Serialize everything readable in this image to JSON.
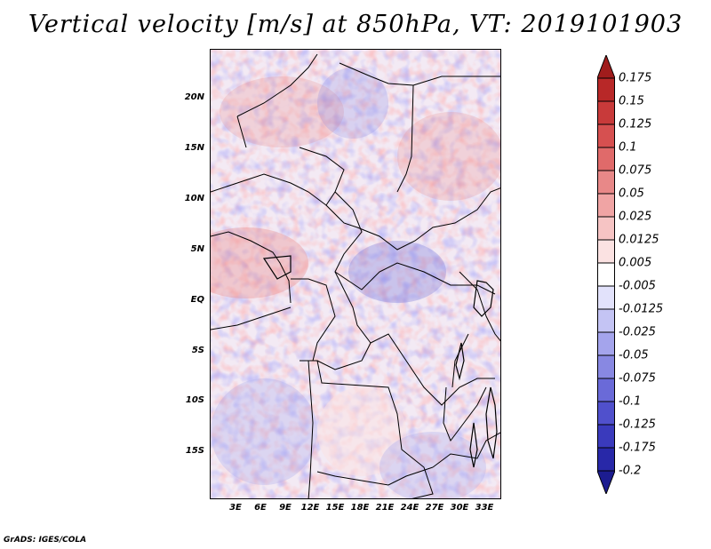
{
  "title": "Vertical velocity [m/s] at 850hPa, VT: 2019101903",
  "lat_labels": [
    "20N",
    "15N",
    "10N",
    "5N",
    "EQ",
    "5S",
    "10S",
    "15S"
  ],
  "lon_labels": [
    "3E",
    "6E",
    "9E",
    "12E",
    "15E",
    "18E",
    "21E",
    "24E",
    "27E",
    "30E",
    "33E"
  ],
  "colorbar": {
    "labels": [
      "0.175",
      "0.15",
      "0.125",
      "0.1",
      "0.075",
      "0.05",
      "0.025",
      "0.0125",
      "0.005",
      "-0.005",
      "-0.0125",
      "-0.025",
      "-0.05",
      "-0.075",
      "-0.1",
      "-0.125",
      "-0.175",
      "-0.2"
    ],
    "colors": [
      "#a01c1c",
      "#b82828",
      "#c83a3a",
      "#d65050",
      "#e06a6a",
      "#e88888",
      "#f0a4a4",
      "#f6c4c4",
      "#fbe2e2",
      "#ffffff",
      "#e2e2fb",
      "#c4c4f4",
      "#a4a4ec",
      "#8888e2",
      "#6a6ad8",
      "#5050cc",
      "#3a3abc",
      "#2828a8",
      "#1c1c90"
    ]
  },
  "credit": "GrADS: IGES/COLA"
}
